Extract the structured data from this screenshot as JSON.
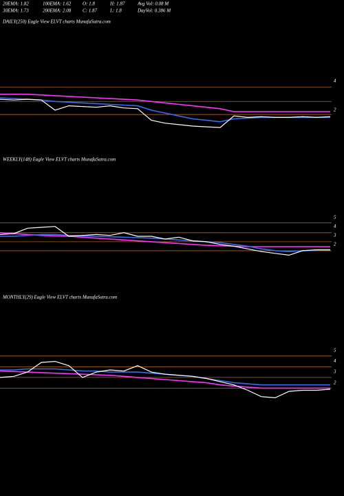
{
  "header": {
    "items": [
      [
        "20EMA: 1.82",
        "100EMA: 1.62",
        "O: 1.8",
        "H: 1.87",
        "Avg Vol: 0.08  M"
      ],
      [
        "30EMA: 1.73",
        "200EMA: 2.08",
        "C: 1.87",
        "L: 1.8",
        "DayVol: 0.386  M"
      ]
    ]
  },
  "chart_data": [
    {
      "type": "line",
      "title": "DAILY(250) Eagle  View  ELVT charts MunafaSutra.com",
      "ylim": [
        -1,
        7.7
      ],
      "yticks": [
        2,
        4
      ],
      "hlines": [
        3.6,
        2.6,
        1.7
      ],
      "hline_color": "#b8651c",
      "series": [
        {
          "color": "#ff33ff",
          "values": [
            3.1,
            3.1,
            3.1,
            3.05,
            3.0,
            2.95,
            2.9,
            2.85,
            2.8,
            2.75,
            2.7,
            2.6,
            2.5,
            2.4,
            2.3,
            2.2,
            2.1,
            1.9,
            1.9,
            1.9,
            1.9,
            1.9,
            1.9,
            1.9,
            1.9
          ]
        },
        {
          "color": "#3a6cf0",
          "values": [
            2.85,
            2.8,
            2.75,
            2.7,
            2.6,
            2.55,
            2.5,
            2.45,
            2.4,
            2.35,
            2.3,
            2.0,
            1.8,
            1.6,
            1.4,
            1.3,
            1.2,
            1.4,
            1.45,
            1.5,
            1.5,
            1.5,
            1.5,
            1.5,
            1.5
          ]
        },
        {
          "color": "#ffffff",
          "values": [
            2.75,
            2.7,
            2.75,
            2.7,
            2.0,
            2.3,
            2.25,
            2.2,
            2.3,
            2.15,
            2.1,
            1.3,
            1.1,
            1.0,
            0.9,
            0.85,
            0.8,
            1.6,
            1.5,
            1.55,
            1.5,
            1.5,
            1.55,
            1.5,
            1.55
          ]
        }
      ]
    },
    {
      "type": "line",
      "title": "WEEKLY(148) Eagle  View  ELVT charts MunafaSutra.com",
      "ylim": [
        -3,
        10.8
      ],
      "yticks": [
        2,
        3,
        4,
        5
      ],
      "hlines": [
        4.4,
        3.3,
        2.3,
        1.3
      ],
      "hline_color": "#b8651c",
      "series": [
        {
          "color": "#ff33ff",
          "values": [
            3.3,
            3.2,
            3.1,
            3.0,
            2.95,
            2.9,
            2.8,
            2.7,
            2.6,
            2.5,
            2.4,
            2.3,
            2.2,
            2.1,
            2.0,
            1.9,
            1.85,
            1.8,
            1.75,
            1.75,
            1.75,
            1.75,
            1.75,
            1.75,
            1.75
          ]
        },
        {
          "color": "#3a6cf0",
          "values": [
            2.9,
            2.9,
            3.0,
            3.1,
            3.1,
            3.0,
            2.95,
            2.9,
            2.85,
            2.8,
            2.75,
            2.7,
            2.6,
            2.5,
            2.4,
            2.3,
            2.2,
            2.0,
            1.8,
            1.5,
            1.3,
            1.2,
            1.3,
            1.35,
            1.4
          ]
        },
        {
          "color": "#ffffff",
          "values": [
            3.1,
            3.2,
            3.8,
            3.9,
            4.0,
            2.9,
            3.0,
            3.1,
            3.0,
            3.3,
            2.9,
            2.9,
            2.6,
            2.8,
            2.4,
            2.3,
            2.0,
            1.8,
            1.5,
            1.2,
            1.0,
            0.8,
            1.3,
            1.4,
            1.4
          ]
        }
      ]
    },
    {
      "type": "line",
      "title": "MONTHLY(29) Eagle  View  ELVT charts MunafaSutra.com",
      "ylim": [
        -7.3,
        9.45
      ],
      "yticks": [
        2,
        3,
        4,
        5
      ],
      "hlines": [
        4.5,
        3.5,
        2.5,
        1.5
      ],
      "hline_color": "#b8651c",
      "series": [
        {
          "color": "#ff33ff",
          "values": [
            3.1,
            3.05,
            3.0,
            2.95,
            2.9,
            2.85,
            2.8,
            2.75,
            2.7,
            2.6,
            2.5,
            2.4,
            2.3,
            2.2,
            2.1,
            2.0,
            1.8,
            1.7,
            1.6,
            1.5,
            1.5,
            1.5,
            1.5,
            1.5,
            1.5
          ]
        },
        {
          "color": "#3a6cf0",
          "values": [
            3.2,
            3.2,
            3.3,
            3.3,
            3.3,
            3.2,
            3.1,
            3.1,
            3.0,
            3.0,
            3.0,
            2.9,
            2.8,
            2.7,
            2.6,
            2.4,
            2.2,
            2.0,
            1.9,
            1.8,
            1.8,
            1.8,
            1.8,
            1.8,
            1.8
          ]
        },
        {
          "color": "#ffffff",
          "values": [
            2.5,
            2.6,
            3.0,
            3.9,
            4.0,
            3.6,
            2.5,
            3.0,
            3.2,
            3.1,
            3.6,
            3.0,
            2.8,
            2.7,
            2.6,
            2.4,
            2.1,
            1.8,
            1.3,
            0.7,
            0.6,
            1.2,
            1.3,
            1.3,
            1.4
          ]
        }
      ]
    }
  ]
}
